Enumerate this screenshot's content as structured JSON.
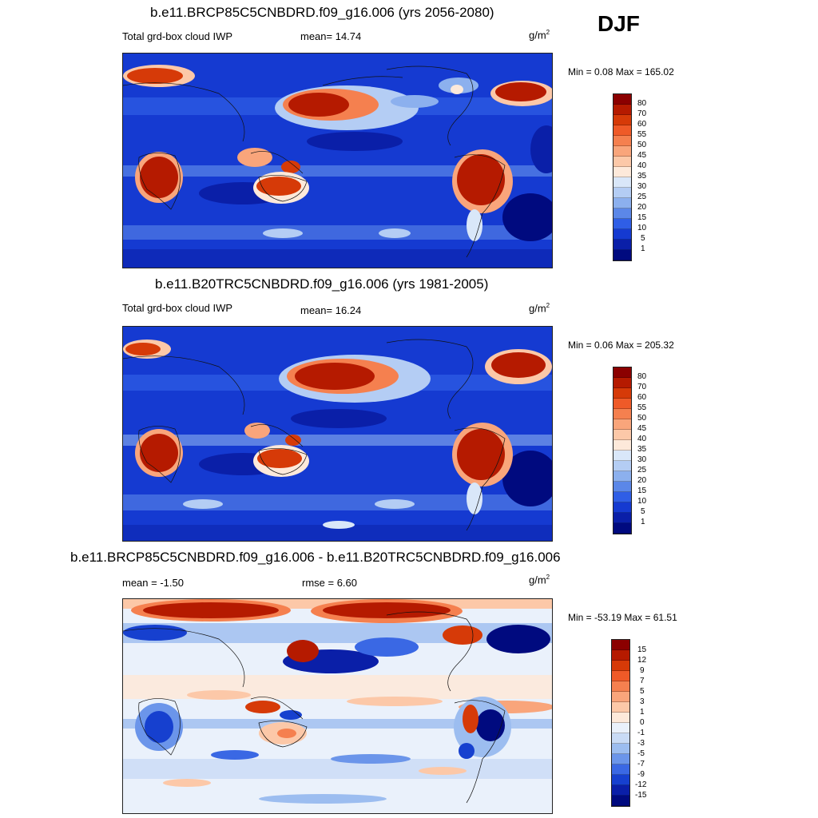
{
  "season": "DJF",
  "panels": [
    {
      "title": "b.e11.BRCP85C5CNBDRD.f09_g16.006 (yrs 2056-2080)",
      "left_label": "Total grd-box cloud IWP",
      "mid_label": "mean=  14.74",
      "units": "g/m",
      "units_sup": "2",
      "minmax": "Min =   0.08 Max = 165.02",
      "levels": [
        "80",
        "70",
        "60",
        "55",
        "50",
        "45",
        "40",
        "35",
        "30",
        "25",
        "20",
        "15",
        "10",
        "5",
        "1"
      ],
      "colors": [
        "#8b0000",
        "#b51a00",
        "#d63a08",
        "#ef5a28",
        "#f5804f",
        "#f9a57b",
        "#fcc8a8",
        "#fde9da",
        "#d9e7f9",
        "#b4cdf4",
        "#8cb0ee",
        "#5b87e8",
        "#2f5ee6",
        "#153ad1",
        "#0a1fa8",
        "#000a7f"
      ]
    },
    {
      "title": "b.e11.B20TRC5CNBDRD.f09_g16.006 (yrs 1981-2005)",
      "left_label": "Total grd-box cloud IWP",
      "mid_label": "mean=  16.24",
      "units": "g/m",
      "units_sup": "2",
      "minmax": "Min =   0.06 Max = 205.32",
      "levels": [
        "80",
        "70",
        "60",
        "55",
        "50",
        "45",
        "40",
        "35",
        "30",
        "25",
        "20",
        "15",
        "10",
        "5",
        "1"
      ],
      "colors": [
        "#8b0000",
        "#b51a00",
        "#d63a08",
        "#ef5a28",
        "#f5804f",
        "#f9a57b",
        "#fcc8a8",
        "#fde9da",
        "#d9e7f9",
        "#b4cdf4",
        "#8cb0ee",
        "#5b87e8",
        "#2f5ee6",
        "#153ad1",
        "#0a1fa8",
        "#000a7f"
      ]
    },
    {
      "title": "b.e11.BRCP85C5CNBDRD.f09_g16.006 - b.e11.B20TRC5CNBDRD.f09_g16.006",
      "left_label": "mean =  -1.50",
      "mid_label": "rmse =   6.60",
      "units": "g/m",
      "units_sup": "2",
      "minmax": "Min = -53.19 Max =  61.51",
      "levels": [
        "15",
        "12",
        "9",
        "7",
        "5",
        "3",
        "1",
        "0",
        "-1",
        "-3",
        "-5",
        "-7",
        "-9",
        "-12",
        "-15"
      ],
      "colors": [
        "#8b0000",
        "#b51a00",
        "#d63a08",
        "#ef5a28",
        "#f5804f",
        "#f9a57b",
        "#fcc8a8",
        "#fde9da",
        "#eaf1fb",
        "#c9dbf6",
        "#9cbdf0",
        "#6b95ea",
        "#3a68e4",
        "#1640cf",
        "#0a1fa8",
        "#000a7f"
      ]
    }
  ]
}
